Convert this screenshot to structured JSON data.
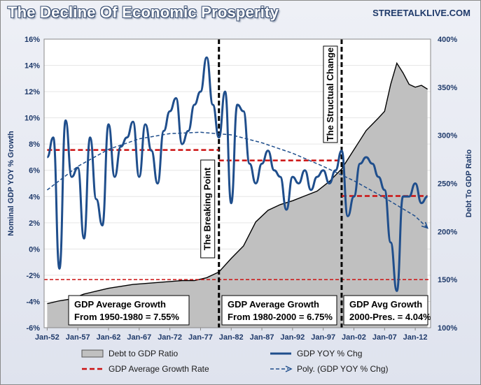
{
  "header": {
    "title": "The Decline Of Economic Prosperity",
    "brand": "STREETALKLIVE.COM"
  },
  "chart_data": {
    "type": "line",
    "title": "The Decline Of Economic Prosperity",
    "ylabel": "Nominal GDP YOY % Growth",
    "y2label": "Debt To GDP Ratio",
    "ylim": [
      -6,
      16
    ],
    "y2lim": [
      100,
      400
    ],
    "xlim": [
      1951.5,
      2014.5
    ],
    "y_ticks": [
      "-6%",
      "-4%",
      "-2%",
      "0%",
      "2%",
      "4%",
      "6%",
      "8%",
      "10%",
      "12%",
      "14%",
      "16%"
    ],
    "y2_ticks": [
      "100%",
      "150%",
      "200%",
      "250%",
      "300%",
      "350%",
      "400%"
    ],
    "x_ticks": [
      "Jan-52",
      "Jan-57",
      "Jan-62",
      "Jan-67",
      "Jan-72",
      "Jan-77",
      "Jan-82",
      "Jan-87",
      "Jan-92",
      "Jan-97",
      "Jan-02",
      "Jan-07",
      "Jan-12"
    ],
    "x_tick_years": [
      1952,
      1957,
      1962,
      1967,
      1972,
      1977,
      1982,
      1987,
      1992,
      1997,
      2002,
      2007,
      2012
    ],
    "series": [
      {
        "name": "Debt to GDP Ratio",
        "kind": "area",
        "axis": "right",
        "color": "#c0c0c0",
        "x": [
          1952,
          1954,
          1956,
          1958,
          1960,
          1962,
          1964,
          1966,
          1968,
          1970,
          1972,
          1974,
          1976,
          1978,
          1980,
          1982,
          1984,
          1986,
          1988,
          1990,
          1992,
          1994,
          1996,
          1998,
          2000,
          2002,
          2004,
          2006,
          2007,
          2008,
          2009,
          2010,
          2011,
          2012,
          2013,
          2014
        ],
        "values": [
          125,
          128,
          130,
          135,
          138,
          141,
          143,
          145,
          146,
          147,
          148,
          149,
          149,
          152,
          158,
          172,
          185,
          210,
          222,
          228,
          232,
          237,
          242,
          252,
          265,
          285,
          305,
          318,
          325,
          353,
          375,
          365,
          353,
          350,
          352,
          348
        ]
      },
      {
        "name": "GDP YOY % Chg",
        "kind": "line",
        "axis": "left",
        "color": "#1f4e8c",
        "x": [
          1952,
          1953,
          1954,
          1955,
          1956,
          1957,
          1958,
          1959,
          1960,
          1961,
          1962,
          1963,
          1964,
          1965,
          1966,
          1967,
          1968,
          1969,
          1970,
          1971,
          1972,
          1973,
          1974,
          1975,
          1976,
          1977,
          1978,
          1979,
          1980,
          1981,
          1982,
          1983,
          1984,
          1985,
          1986,
          1987,
          1988,
          1989,
          1990,
          1991,
          1992,
          1993,
          1994,
          1995,
          1996,
          1997,
          1998,
          1999,
          2000,
          2001,
          2002,
          2003,
          2004,
          2005,
          2006,
          2007,
          2008,
          2009,
          2010,
          2011,
          2012,
          2013,
          2014
        ],
        "values": [
          7,
          8.5,
          -1.5,
          9.8,
          5.5,
          6.2,
          0.8,
          8.5,
          3.8,
          1.8,
          9.5,
          5.5,
          7.8,
          8.5,
          9.7,
          5.5,
          9.5,
          7.5,
          5,
          9,
          10.5,
          11.5,
          8,
          9,
          11,
          12,
          14.6,
          11,
          8.5,
          12,
          3.5,
          11,
          10.5,
          6.5,
          5,
          6.5,
          7.5,
          6,
          5.5,
          3,
          5.5,
          5,
          6,
          4.5,
          5.5,
          6,
          5,
          6,
          7.5,
          2.5,
          4,
          6.5,
          7,
          6.5,
          5.5,
          4.5,
          0.5,
          -3.2,
          4,
          4,
          5,
          3.5,
          4
        ]
      },
      {
        "name": "GDP Average Growth Rate",
        "kind": "step",
        "axis": "left",
        "color": "#cc1111",
        "segments": [
          {
            "x": [
              1952,
              1980
            ],
            "value": 7.55
          },
          {
            "x": [
              1980,
              2000
            ],
            "value": 6.75
          },
          {
            "x": [
              2000,
              2014
            ],
            "value": 4.04
          }
        ]
      },
      {
        "name": "Poly. (GDP YOY % Chg)",
        "kind": "trend",
        "axis": "left",
        "color": "#1f4e8c",
        "x": [
          1952,
          1957,
          1962,
          1967,
          1972,
          1977,
          1982,
          1987,
          1992,
          1997,
          2002,
          2007,
          2012,
          2014
        ],
        "values": [
          4.5,
          6.3,
          7.6,
          8.4,
          8.8,
          8.9,
          8.7,
          8.1,
          7.3,
          6.3,
          5.2,
          3.9,
          2.5,
          1.6
        ]
      }
    ],
    "reference_line": {
      "axis": "right",
      "value": 150,
      "color": "#cc1111"
    },
    "markers": [
      {
        "x": 1980,
        "label": "The Breaking Point"
      },
      {
        "x": 2000,
        "label": "The Structual Change"
      }
    ],
    "annotations": [
      {
        "line1": "GDP Average Growth",
        "line2": "From 1950-1980 = 7.55%"
      },
      {
        "line1": "GDP Average Growth",
        "line2": "From 1980-2000 = 6.75%"
      },
      {
        "line1": "GDP Avg Growth",
        "line2": "2000-Pres. = 4.04%"
      }
    ],
    "legend": {
      "placement": "bottom",
      "items": [
        "Debt to GDP Ratio",
        "GDP YOY % Chg",
        "GDP Average Growth Rate",
        "Poly. (GDP YOY % Chg)"
      ]
    }
  }
}
